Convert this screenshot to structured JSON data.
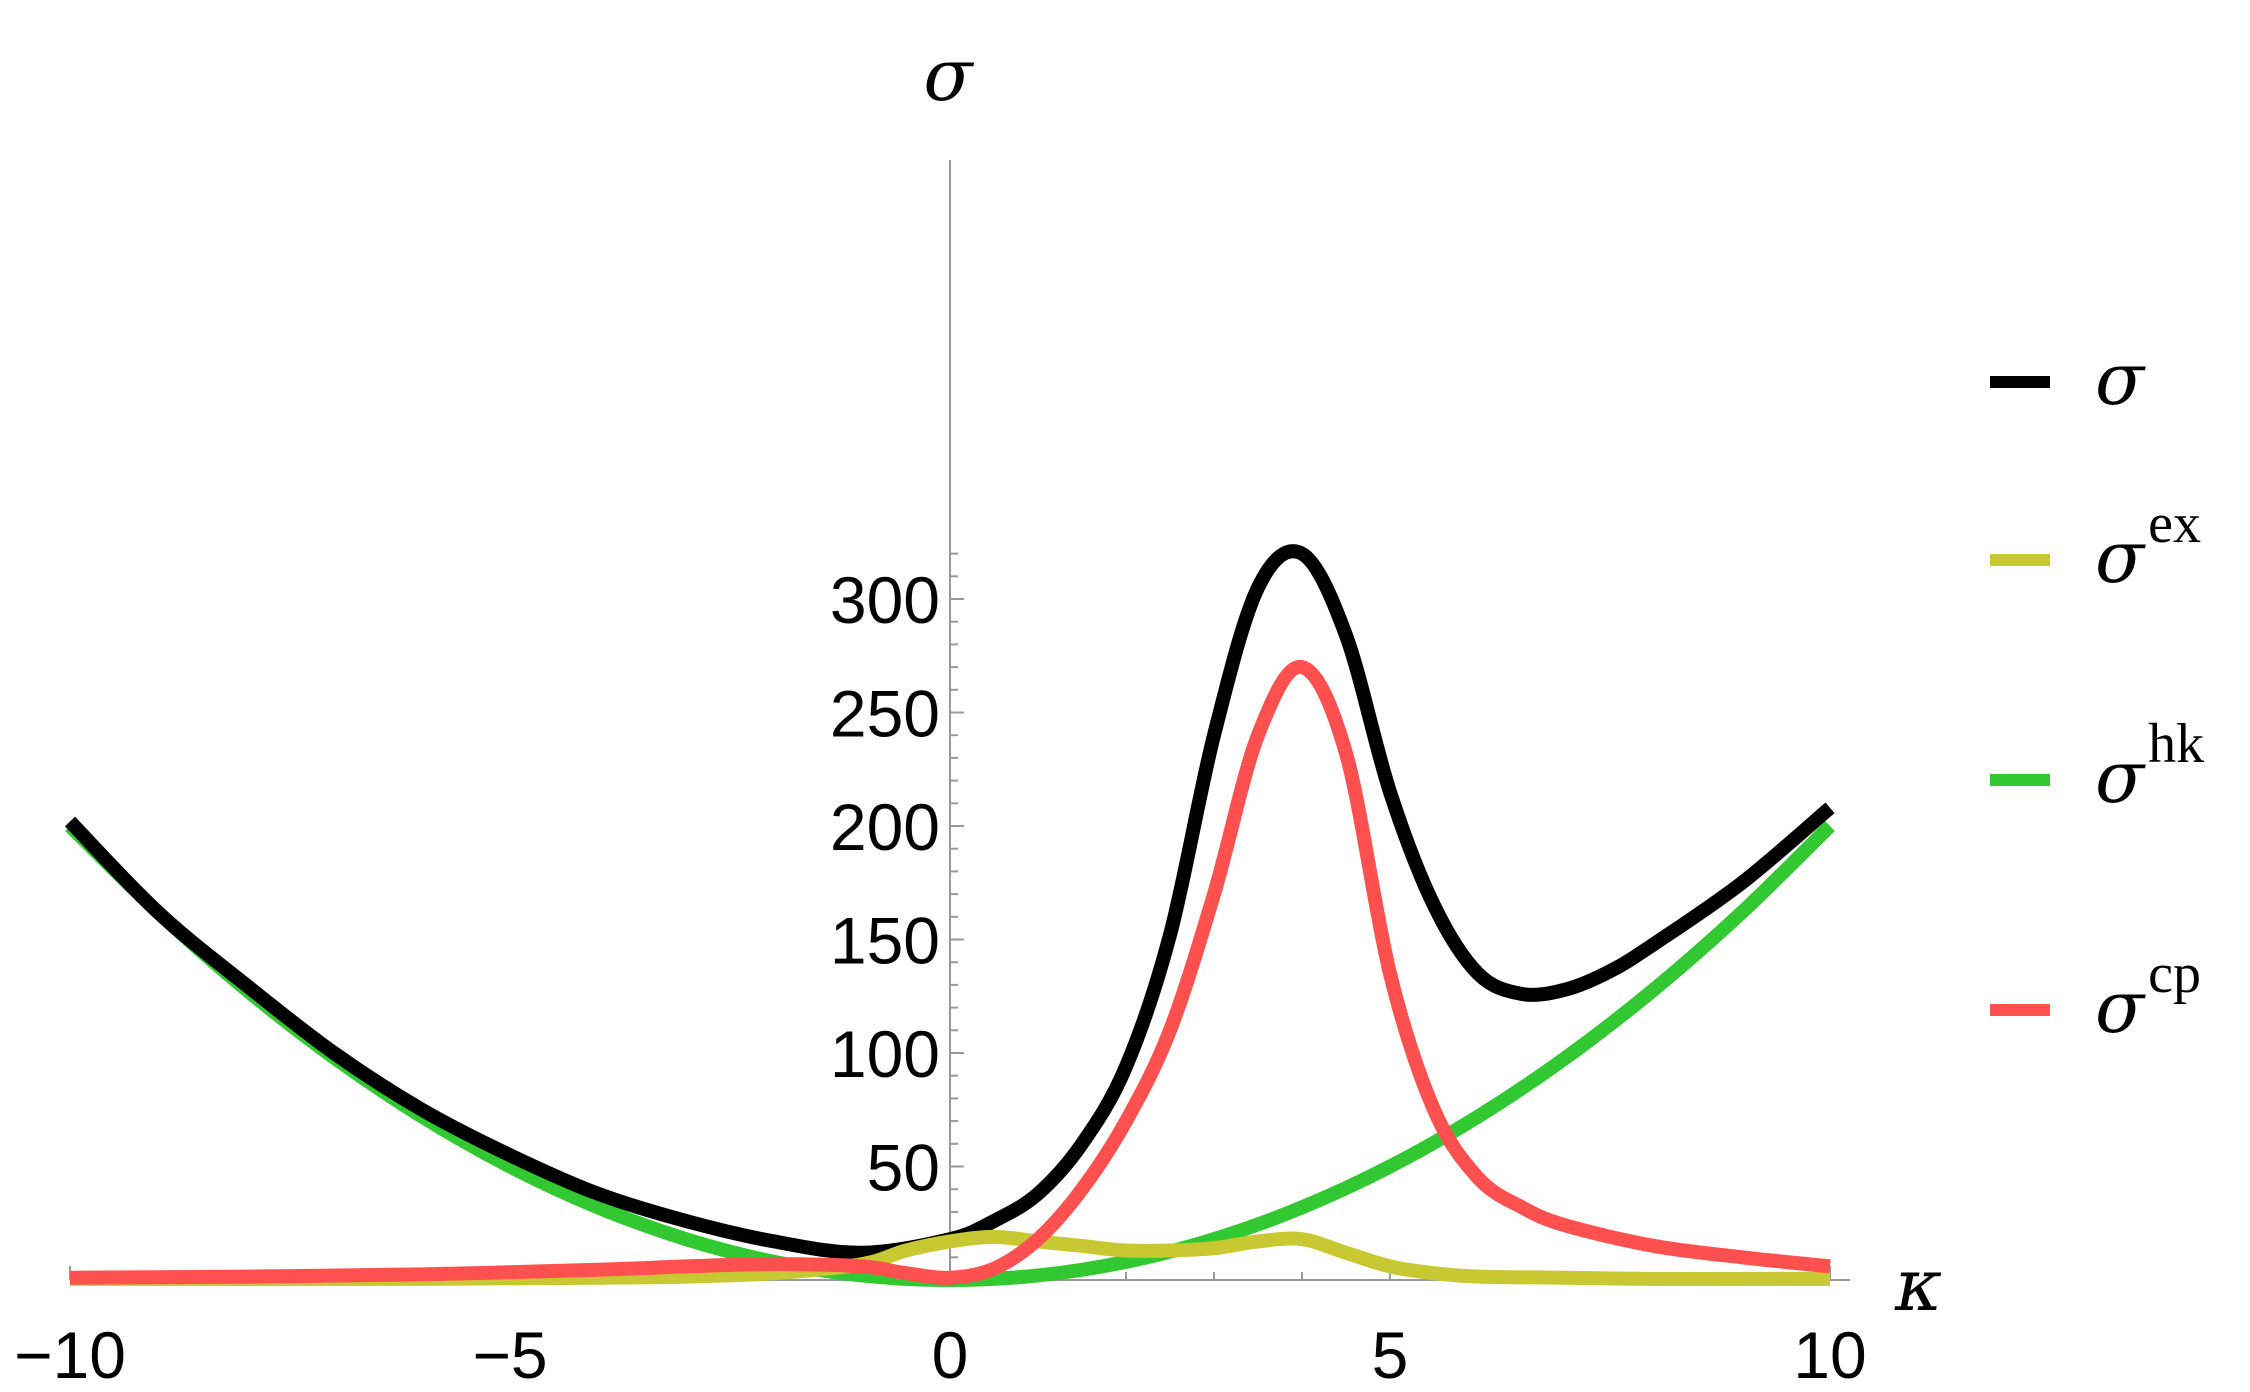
{
  "chart_data": {
    "type": "line",
    "xlabel": "κ",
    "ylabel": "σ",
    "xlim": [
      -10,
      10
    ],
    "ylim": [
      0,
      330
    ],
    "x_ticks": [
      -10,
      -5,
      0,
      5,
      10
    ],
    "x_tick_labels": [
      "−10",
      "−5",
      "0",
      "5",
      "10"
    ],
    "y_ticks": [
      50,
      100,
      150,
      200,
      250,
      300
    ],
    "y_tick_labels": [
      "50",
      "100",
      "150",
      "200",
      "250",
      "300"
    ],
    "grid": false,
    "legend_position": "right",
    "series": [
      {
        "name": "σ",
        "name_base": "σ",
        "name_sup": "",
        "color": "#000000",
        "x": [
          -10,
          -9,
          -8,
          -7,
          -6,
          -5,
          -4,
          -3,
          -2,
          -1,
          0,
          0.5,
          1,
          1.5,
          2,
          2.5,
          3,
          3.5,
          4,
          4.5,
          5,
          5.5,
          6,
          6.5,
          7,
          7.5,
          8,
          9,
          10
        ],
        "y": [
          202,
          162,
          130,
          100,
          75,
          55,
          38,
          26,
          17,
          12,
          18,
          26,
          38,
          60,
          94,
          152,
          240,
          305,
          320,
          284,
          215,
          165,
          135,
          126,
          128,
          136,
          148,
          175,
          208
        ]
      },
      {
        "name": "σ^ex",
        "name_base": "σ",
        "name_sup": "ex",
        "color": "#c8c832",
        "x": [
          -10,
          -6,
          -4,
          -3,
          -2,
          -1,
          -0.5,
          0,
          0.5,
          1,
          1.5,
          2,
          2.5,
          3,
          3.5,
          4,
          4.5,
          5,
          5.5,
          6,
          7,
          8,
          10
        ],
        "y": [
          0.5,
          0.5,
          1,
          1.5,
          3,
          7,
          13,
          17,
          19,
          17,
          15,
          13,
          13,
          14,
          17,
          18,
          12,
          6,
          3,
          1.5,
          1,
          0.5,
          0.5
        ]
      },
      {
        "name": "σ^hk",
        "name_base": "σ",
        "name_sup": "hk",
        "color": "#32c832",
        "x": [
          -10,
          -9,
          -8,
          -7,
          -6,
          -5,
          -4,
          -3,
          -2,
          -1,
          0,
          1,
          2,
          3,
          4,
          5,
          6,
          7,
          8,
          9,
          10
        ],
        "y": [
          200,
          162,
          128,
          98,
          72,
          50,
          32,
          18,
          8,
          2,
          0,
          2,
          8,
          18,
          32,
          50,
          72,
          98,
          128,
          162,
          200
        ]
      },
      {
        "name": "σ^cp",
        "name_base": "σ",
        "name_sup": "cp",
        "color": "#ff5050",
        "x": [
          -10,
          -8,
          -6,
          -4,
          -3,
          -2,
          -1,
          -0.5,
          0,
          0.5,
          1,
          1.5,
          2,
          2.5,
          3,
          3.5,
          4,
          4.5,
          5,
          5.5,
          6,
          6.5,
          7,
          8,
          9,
          10
        ],
        "y": [
          1,
          1.5,
          2.5,
          4.5,
          6,
          7,
          6,
          3,
          1,
          5,
          18,
          40,
          70,
          110,
          170,
          240,
          270,
          232,
          135,
          75,
          45,
          32,
          24,
          15,
          10,
          6
        ]
      }
    ]
  }
}
